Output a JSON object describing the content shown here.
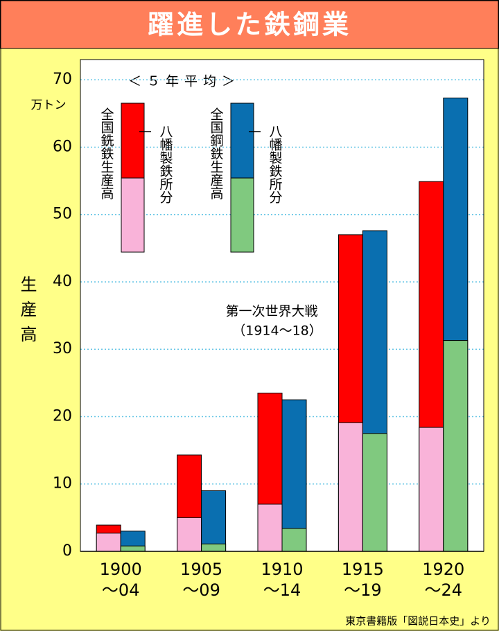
{
  "chart_data": {
    "type": "grouped-overlay-bar",
    "title": "躍進した鉄鋼業",
    "y_label": "生産高",
    "y_unit": "万トン",
    "legend_title": "＜５年平均＞",
    "annotation": [
      "第一次世界大戦",
      "（1914～18）"
    ],
    "source": "東京書籍版「図説日本史」より",
    "categories": [
      [
        "1900",
        "～04"
      ],
      [
        "1905",
        "～09"
      ],
      [
        "1910",
        "～14"
      ],
      [
        "1915",
        "～19"
      ],
      [
        "1920",
        "～24"
      ]
    ],
    "series": [
      {
        "name": "全国銑鉄生産高",
        "color": "#ff0000",
        "values": [
          3.9,
          14.3,
          23.5,
          47.0,
          54.9
        ]
      },
      {
        "name": "八幡製鉄所分",
        "color": "#f9b3d9",
        "values": [
          2.7,
          5.0,
          7.0,
          19.1,
          18.4
        ]
      },
      {
        "name": "全国鋼鉄生産高",
        "color": "#0a6fb0",
        "values": [
          3.0,
          9.0,
          22.5,
          47.6,
          67.3
        ]
      },
      {
        "name": "八幡製鉄所分",
        "color": "#80c97f",
        "values": [
          0.8,
          1.1,
          3.4,
          17.5,
          31.3
        ]
      }
    ],
    "ylim": [
      0,
      73
    ],
    "yticks": [
      0,
      10,
      20,
      30,
      40,
      50,
      60,
      70
    ],
    "grid": true
  }
}
